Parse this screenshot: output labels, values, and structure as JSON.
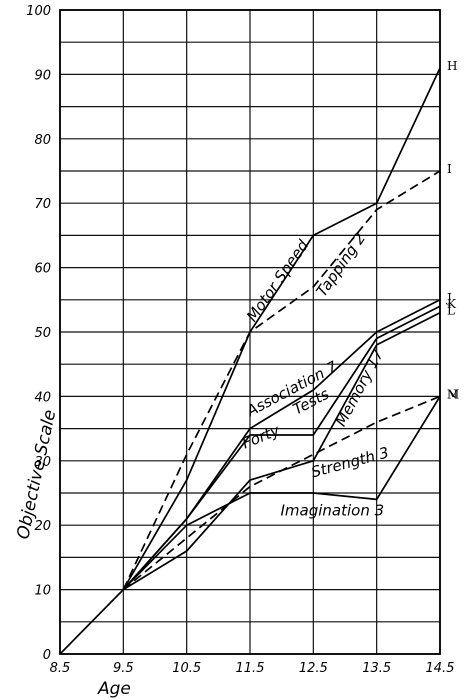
{
  "chart_data": {
    "type": "line",
    "xlabel": "Age",
    "ylabel": "Objective Scale",
    "x": [
      8.5,
      9.5,
      10.5,
      11.5,
      12.5,
      13.5,
      14.5
    ],
    "x_tick_labels": [
      "8.5",
      "9.5",
      "10.5",
      "11.5",
      "12.5",
      "13.5",
      "14.5"
    ],
    "y_tick_labels": [
      "0",
      "10",
      "20",
      "30",
      "40",
      "50",
      "60",
      "70",
      "80",
      "90",
      "100"
    ],
    "xlim": [
      8.5,
      14.5
    ],
    "ylim": [
      0,
      100
    ],
    "grid": true,
    "series": [
      {
        "name": "Motor Speed",
        "end_label": "H",
        "style": "solid",
        "x": [
          8.5,
          9.5,
          10.5,
          11.5,
          12.5,
          13.5,
          14.5
        ],
        "y": [
          0,
          10,
          27,
          50,
          65,
          70,
          91
        ]
      },
      {
        "name": "Tapping 2",
        "end_label": "I",
        "style": "dashed",
        "x": [
          9.5,
          10.5,
          11.5,
          12.5,
          13.5,
          14.5
        ],
        "y": [
          10,
          31,
          50,
          57,
          69,
          75
        ]
      },
      {
        "name": "Association 7",
        "end_label": "J",
        "style": "solid",
        "x": [
          9.5,
          10.5,
          11.5,
          12.5,
          13.5,
          14.5
        ],
        "y": [
          10,
          21,
          35,
          41,
          50,
          55
        ]
      },
      {
        "name": "Memory 17",
        "end_label": "K",
        "style": "solid",
        "x": [
          9.5,
          10.5,
          11.5,
          12.5,
          13.5,
          14.5
        ],
        "y": [
          10,
          21,
          34,
          34,
          49,
          54
        ]
      },
      {
        "name": "Forty Tests",
        "end_label": "L",
        "style": "solid",
        "x": [
          9.5,
          10.5,
          11.5,
          12.5,
          13.5,
          14.5
        ],
        "y": [
          10,
          16,
          27,
          30,
          48,
          53
        ]
      },
      {
        "name": "Strength 3",
        "end_label": "M",
        "style": "dashed",
        "x": [
          9.5,
          10.5,
          11.5,
          12.5,
          13.5,
          14.5
        ],
        "y": [
          10,
          18,
          26,
          31,
          36,
          40
        ]
      },
      {
        "name": "Imagination 3",
        "end_label": "N",
        "style": "solid",
        "x": [
          9.5,
          10.5,
          11.5,
          12.5,
          13.5,
          14.5
        ],
        "y": [
          10,
          20,
          25,
          25,
          24,
          40
        ]
      }
    ],
    "annotations": [
      {
        "text": "Motor Speed",
        "x": 12.0,
        "y": 57.5,
        "angle": -55
      },
      {
        "text": "Tapping 2",
        "x": 13.0,
        "y": 60.0,
        "angle": -55
      },
      {
        "text": "Association 7",
        "x": 12.2,
        "y": 40.5,
        "angle": -28
      },
      {
        "text": "Tests",
        "x": 12.5,
        "y": 38.5,
        "angle": -28
      },
      {
        "text": "Forty",
        "x": 11.7,
        "y": 33.0,
        "angle": -22
      },
      {
        "text": "Memory 17",
        "x": 13.3,
        "y": 41.0,
        "angle": -62
      },
      {
        "text": "Strength 3",
        "x": 13.1,
        "y": 29.0,
        "angle": -15
      },
      {
        "text": "Imagination 3",
        "x": 12.8,
        "y": 21.5,
        "angle": 0
      }
    ]
  }
}
